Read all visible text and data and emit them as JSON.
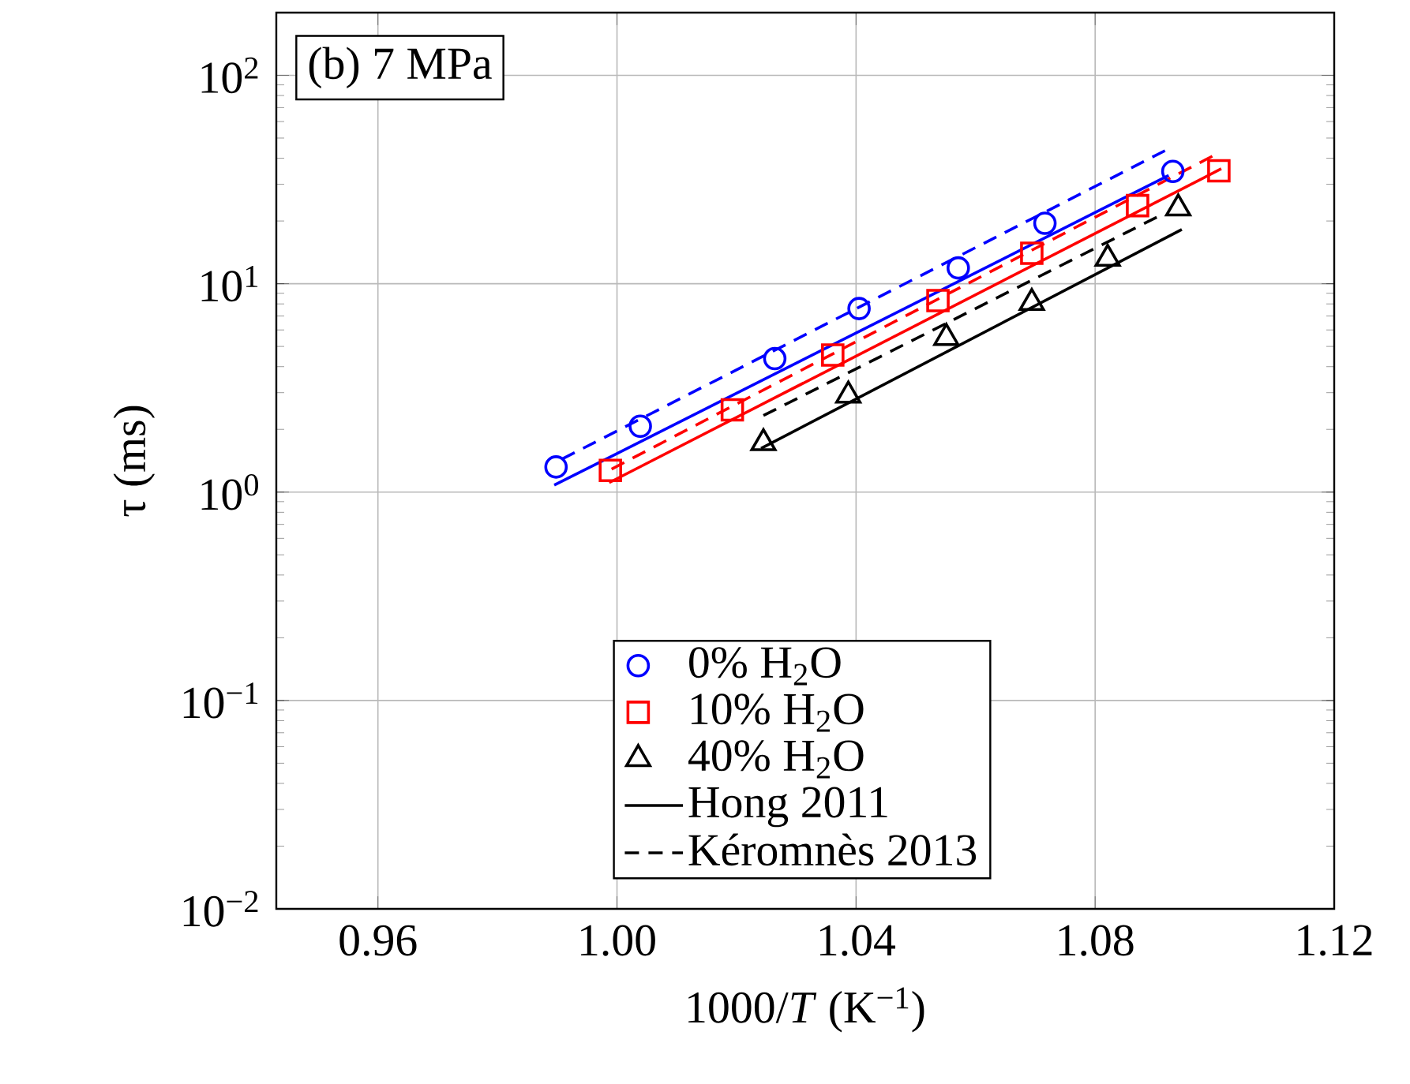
{
  "chart_data": {
    "type": "scatter",
    "xlabel": "1000/*T* (K$^{−1}$)",
    "ylabel": "τ (ms)",
    "xlim": [
      0.943,
      1.12
    ],
    "ylim": [
      0.01,
      200
    ],
    "xticks": [
      0.96,
      {
        "value": 1.0,
        "label": "1.00"
      },
      1.04,
      1.08,
      1.12
    ],
    "yticks": [
      {
        "value": 0.01,
        "label": "10$^{−2}$"
      },
      {
        "value": 0.1,
        "label": "10$^{−1}$"
      },
      {
        "value": 1,
        "label": "10$^{0}$"
      },
      {
        "value": 10,
        "label": "10$^{1}$"
      },
      {
        "value": 100,
        "label": "10$^{2}$"
      }
    ],
    "log": "y",
    "grid": true,
    "legend": "bottom",
    "annotations": [
      "(b) 7 MPa"
    ],
    "series": [
      {
        "name": "0% H$_{2}$O",
        "marker": "circle",
        "color": "#0000ff",
        "x": [
          0.9898,
          1.0039,
          1.0264,
          1.0405,
          1.0571,
          1.0716,
          1.093
        ],
        "values": [
          1.32,
          2.07,
          4.37,
          7.6,
          11.9,
          19.5,
          34.6
        ]
      },
      {
        "name": "10% H$_{2}$O",
        "marker": "square",
        "color": "#ff0000",
        "x": [
          0.9989,
          1.0193,
          1.0361,
          1.0537,
          1.0694,
          1.0871,
          1.1007
        ],
        "values": [
          1.27,
          2.48,
          4.55,
          8.3,
          14.0,
          23.7,
          34.8
        ]
      },
      {
        "name": "40% H$_{2}$O",
        "marker": "triangle",
        "color": "#000000",
        "x": [
          1.0245,
          1.0387,
          1.0551,
          1.0694,
          1.0821,
          1.0939
        ],
        "values": [
          1.72,
          2.91,
          5.5,
          8.1,
          13.2,
          23.0
        ]
      },
      {
        "name": "Hong 2011",
        "type": "line",
        "line_style": "solid",
        "color": "#000000",
        "x": [
          1.0241,
          1.0945
        ],
        "values": [
          1.62,
          18.2
        ]
      },
      {
        "name": "Kéromnès 2013",
        "type": "line",
        "line_style": "dashed",
        "color": "#000000",
        "x": [
          1.0245,
          1.0915
        ],
        "values": [
          2.33,
          21.7
        ]
      },
      {
        "type": "line",
        "line_style": "solid",
        "color": "#0000ff",
        "x": [
          0.9895,
          1.0923
        ],
        "values": [
          1.08,
          33.1
        ]
      },
      {
        "type": "line",
        "line_style": "dashed",
        "color": "#0000ff",
        "x": [
          0.9908,
          1.0919
        ],
        "values": [
          1.44,
          43.8
        ]
      },
      {
        "type": "line",
        "line_style": "solid",
        "color": "#ff0000",
        "x": [
          0.9987,
          1.1011
        ],
        "values": [
          1.11,
          35.6
        ]
      },
      {
        "type": "line",
        "line_style": "dashed",
        "color": "#ff0000",
        "x": [
          0.9991,
          1.1007
        ],
        "values": [
          1.29,
          42.5
        ]
      }
    ]
  }
}
